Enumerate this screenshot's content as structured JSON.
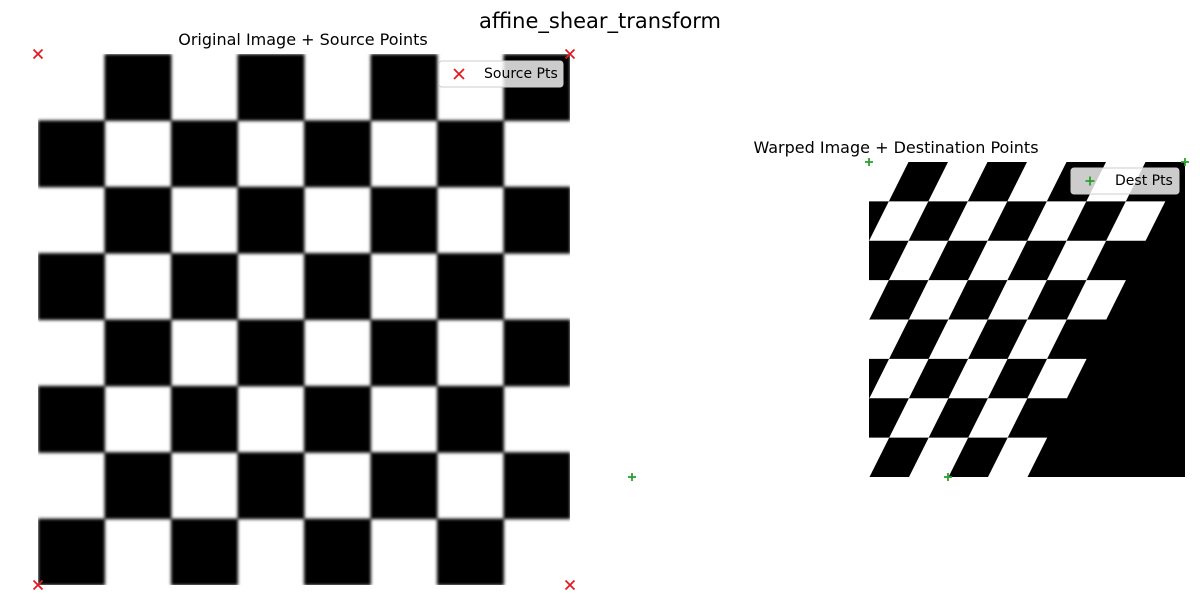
{
  "figure": {
    "title": "affine_shear_transform"
  },
  "chart_data": [
    {
      "type": "image",
      "title": "Original Image + Source Points",
      "image": {
        "pattern": "checkerboard",
        "grid_cells": 8,
        "top_left_cell": "white",
        "colors": [
          "#000000",
          "#ffffff"
        ],
        "edge_blur": true
      },
      "series": [
        {
          "name": "Source Pts",
          "marker": "x",
          "color": "#e31a1c",
          "points": [
            [
              0,
              0
            ],
            [
              1,
              0
            ],
            [
              0,
              1
            ],
            [
              1,
              1
            ]
          ]
        }
      ],
      "axis": "off",
      "legend_position": "upper right"
    },
    {
      "type": "image",
      "title": "Warped Image + Destination Points",
      "image": {
        "pattern": "sheared-checkerboard",
        "grid_cells": 8,
        "top_left_cell": "white",
        "shear_x": 0.5,
        "fill_color": "#000000",
        "colors": [
          "#000000",
          "#ffffff"
        ]
      },
      "series": [
        {
          "name": "Dest Pts",
          "marker": "+",
          "color": "#2ca02c",
          "points": [
            [
              0,
              0
            ],
            [
              1,
              0
            ],
            [
              -0.75,
              1
            ],
            [
              0.25,
              1
            ]
          ]
        }
      ],
      "axis": "off",
      "legend_position": "upper right"
    }
  ]
}
